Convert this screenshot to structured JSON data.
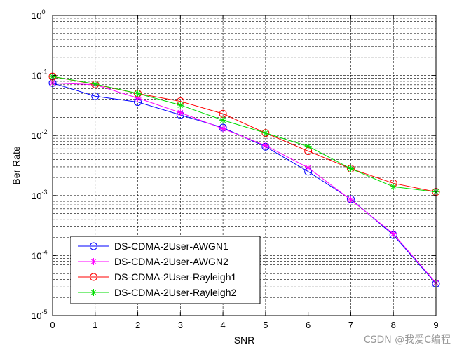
{
  "chart_data": {
    "type": "line",
    "xlabel": "SNR",
    "ylabel": "Ber Rate",
    "xlim": [
      0,
      9
    ],
    "ylim": [
      1e-05,
      1
    ],
    "yscale": "log",
    "grid": true,
    "legend_position": "bottom-left",
    "x": [
      0,
      1,
      2,
      3,
      4,
      5,
      6,
      7,
      8,
      9
    ],
    "x_ticks": [
      "0",
      "1",
      "2",
      "3",
      "4",
      "5",
      "6",
      "7",
      "8",
      "9"
    ],
    "y_ticks": [
      {
        "base": "10",
        "exp": "-5",
        "value": 1e-05
      },
      {
        "base": "10",
        "exp": "-4",
        "value": 0.0001
      },
      {
        "base": "10",
        "exp": "-3",
        "value": 0.001
      },
      {
        "base": "10",
        "exp": "-2",
        "value": 0.01
      },
      {
        "base": "10",
        "exp": "-1",
        "value": 0.1
      },
      {
        "base": "10",
        "exp": "0",
        "value": 1
      }
    ],
    "series": [
      {
        "name": "DS-CDMA-2User-AWGN1",
        "color": "#0000ff",
        "marker": "circle",
        "values": [
          0.075,
          0.045,
          0.036,
          0.022,
          0.0135,
          0.0065,
          0.0025,
          0.00087,
          0.00022,
          3.4e-05
        ]
      },
      {
        "name": "DS-CDMA-2User-AWGN2",
        "color": "#ff00ff",
        "marker": "star",
        "values": [
          0.075,
          0.07,
          0.042,
          0.024,
          0.013,
          0.0068,
          0.0029,
          0.00085,
          0.00023,
          3.5e-05
        ]
      },
      {
        "name": "DS-CDMA-2User-Rayleigh1",
        "color": "#ff0000",
        "marker": "circle",
        "values": [
          0.096,
          0.071,
          0.05,
          0.037,
          0.023,
          0.011,
          0.0055,
          0.0028,
          0.0016,
          0.00115
        ]
      },
      {
        "name": "DS-CDMA-2User-Rayleigh2",
        "color": "#00dd00",
        "marker": "star",
        "values": [
          0.096,
          0.072,
          0.05,
          0.032,
          0.018,
          0.011,
          0.0066,
          0.0028,
          0.0014,
          0.00115
        ]
      }
    ]
  },
  "watermark": "CSDN @我爱C编程"
}
